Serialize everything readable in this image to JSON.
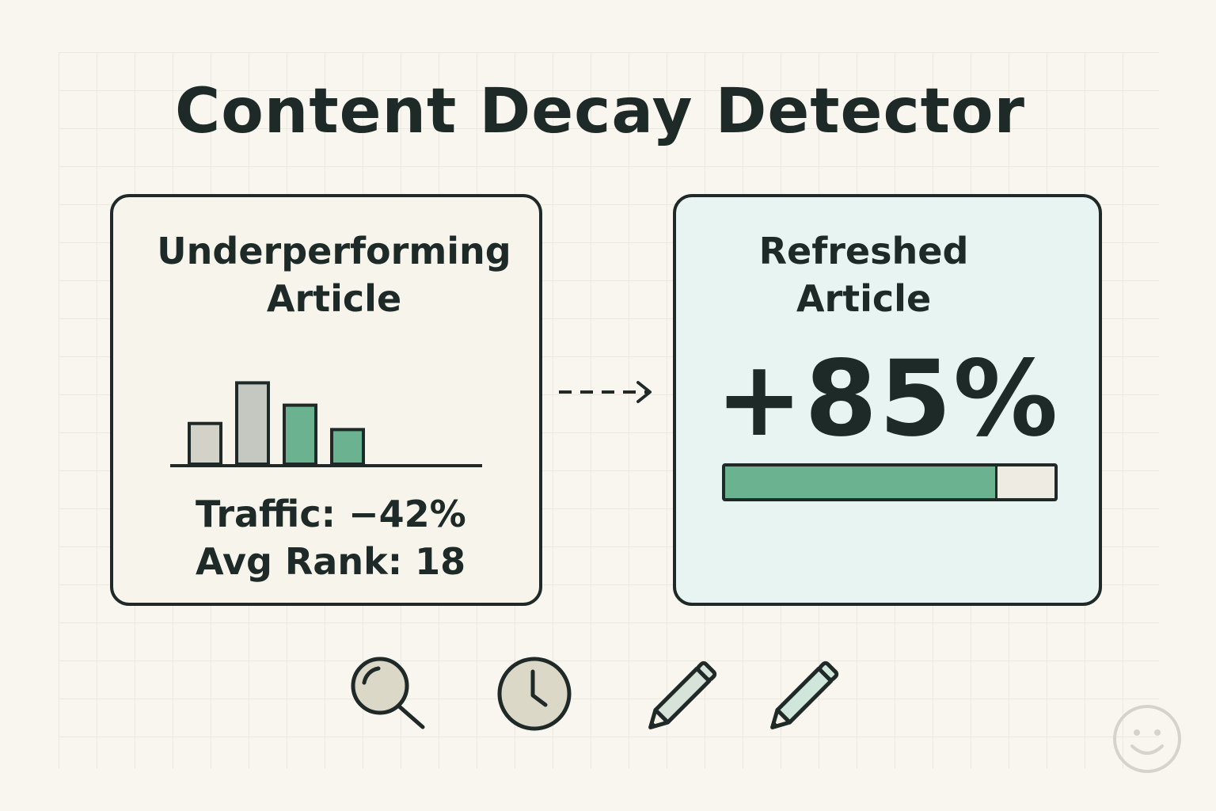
{
  "title": "Content Decay Detector",
  "left_card": {
    "title": "Underperforming\nArticle",
    "traffic": "Traffic: −42%",
    "rank": "Avg Rank: 18"
  },
  "right_card": {
    "title": "Refreshed\nArticle",
    "change": "+85%",
    "progress_fraction": 0.82
  },
  "chart_data": {
    "type": "bar",
    "categories": [
      "",
      "",
      "",
      ""
    ],
    "values": [
      2,
      4,
      2.9,
      1.7
    ],
    "ylim": [
      0,
      4.6
    ],
    "bar_colors": [
      "#d3d2c9",
      "#c5c8c1",
      "#6bb390",
      "#6bb390"
    ]
  },
  "icons": [
    "magnifier-icon",
    "clock-icon",
    "pencil-icon",
    "pencil-icon",
    "smiley-icon"
  ],
  "colors": {
    "accent_green": "#6bb390",
    "ink": "#1f2a28",
    "refreshed_bg": "#e7f4f1",
    "card_bg": "#f7f4ec",
    "page_bg": "#f8f6ee"
  }
}
